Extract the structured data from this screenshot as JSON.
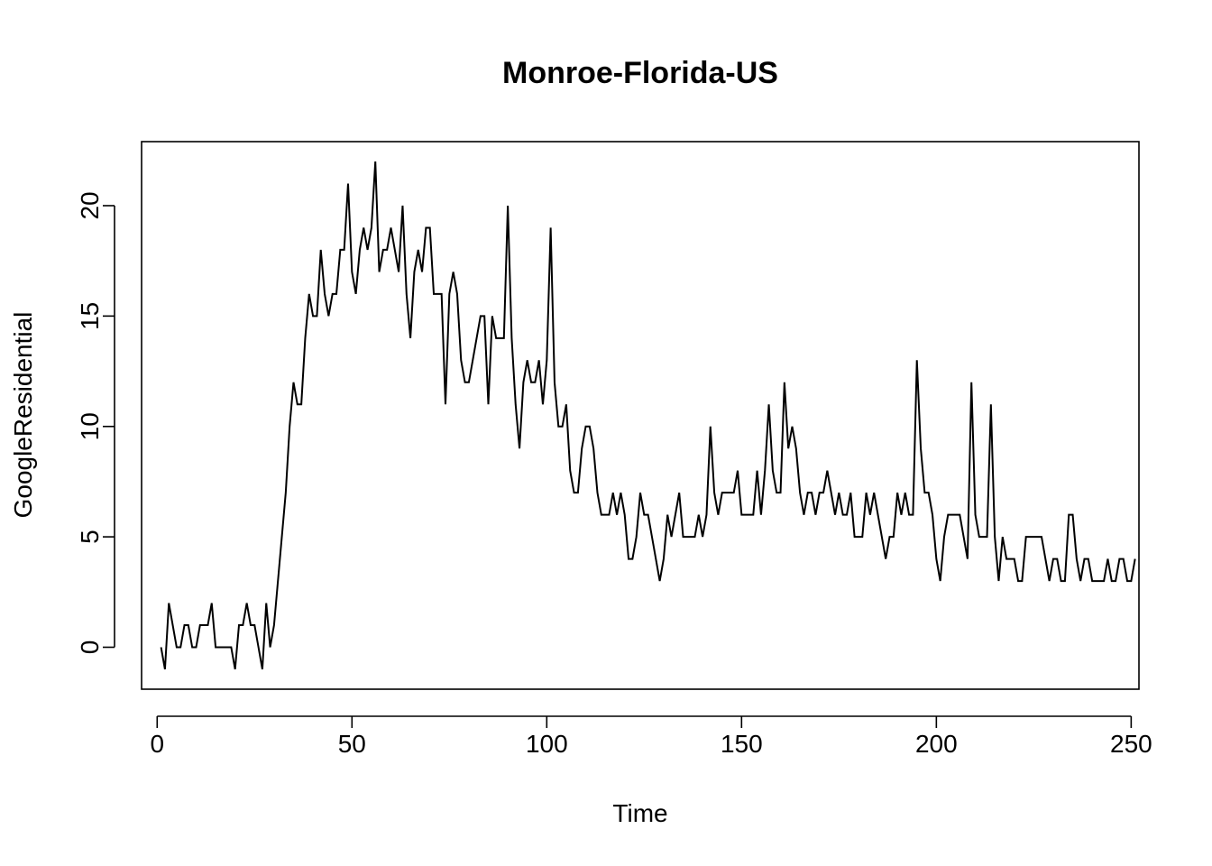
{
  "chart_data": {
    "type": "line",
    "title": "Monroe-Florida-US",
    "xlabel": "Time",
    "ylabel": "GoogleResidential",
    "xlim": [
      -4,
      252
    ],
    "ylim": [
      -1.9,
      22.9
    ],
    "xticks": [
      0,
      50,
      100,
      150,
      200,
      250
    ],
    "yticks": [
      0,
      5,
      10,
      15,
      20
    ],
    "grid": false,
    "legend": "none",
    "series": [
      {
        "color": "#000000",
        "x_start": 1,
        "values": [
          0,
          -1,
          2,
          1,
          0,
          0,
          1,
          1,
          0,
          0,
          1,
          1,
          1,
          2,
          0,
          0,
          0,
          0,
          0,
          -1,
          1,
          1,
          2,
          1,
          1,
          0,
          -1,
          2,
          0,
          1,
          3,
          5,
          7,
          10,
          12,
          11,
          11,
          14,
          16,
          15,
          15,
          18,
          16,
          15,
          16,
          16,
          18,
          18,
          21,
          17,
          16,
          18,
          19,
          18,
          19,
          22,
          17,
          18,
          18,
          19,
          18,
          17,
          20,
          16,
          14,
          17,
          18,
          17,
          19,
          19,
          16,
          16,
          16,
          11,
          16,
          17,
          16,
          13,
          12,
          12,
          13,
          14,
          15,
          15,
          11,
          15,
          14,
          14,
          14,
          20,
          14,
          11,
          9,
          12,
          13,
          12,
          12,
          13,
          11,
          13,
          19,
          12,
          10,
          10,
          11,
          8,
          7,
          7,
          9,
          10,
          10,
          9,
          7,
          6,
          6,
          6,
          7,
          6,
          7,
          6,
          4,
          4,
          5,
          7,
          6,
          6,
          5,
          4,
          3,
          4,
          6,
          5,
          6,
          7,
          5,
          5,
          5,
          5,
          6,
          5,
          6,
          10,
          7,
          6,
          7,
          7,
          7,
          7,
          8,
          6,
          6,
          6,
          6,
          8,
          6,
          8,
          11,
          8,
          7,
          7,
          12,
          9,
          10,
          9,
          7,
          6,
          7,
          7,
          6,
          7,
          7,
          8,
          7,
          6,
          7,
          6,
          6,
          7,
          5,
          5,
          5,
          7,
          6,
          7,
          6,
          5,
          4,
          5,
          5,
          7,
          6,
          7,
          6,
          6,
          13,
          9,
          7,
          7,
          6,
          4,
          3,
          5,
          6,
          6,
          6,
          6,
          5,
          4,
          12,
          6,
          5,
          5,
          5,
          11,
          5,
          3,
          5,
          4,
          4,
          4,
          3,
          3,
          5,
          5,
          5,
          5,
          5,
          4,
          3,
          4,
          4,
          3,
          3,
          6,
          6,
          4,
          3,
          4,
          4,
          3,
          3,
          3,
          3,
          4,
          3,
          3,
          4,
          4,
          3,
          3,
          4
        ]
      }
    ]
  }
}
